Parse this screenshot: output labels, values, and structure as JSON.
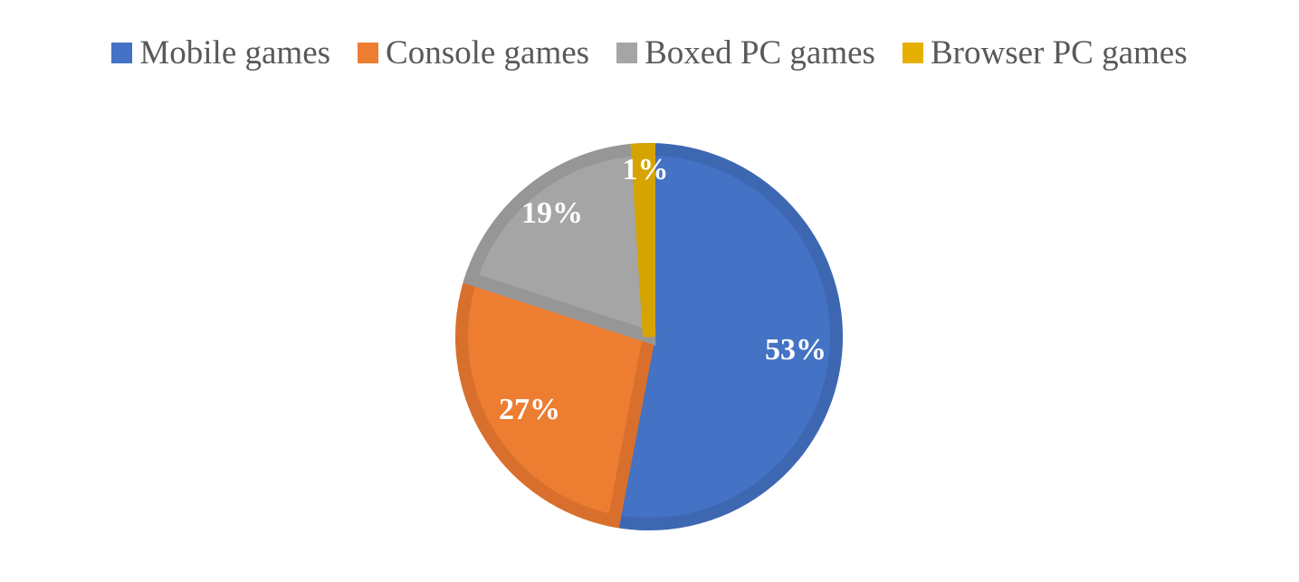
{
  "chart_data": {
    "type": "pie",
    "categories": [
      "Mobile games",
      "Console games",
      "Boxed PC games",
      "Browser PC games"
    ],
    "values": [
      53,
      27,
      19,
      1
    ],
    "data_labels": [
      "53%",
      "27%",
      "19%",
      "1%"
    ],
    "colors": [
      "#4472c4",
      "#ed7d31",
      "#a5a5a5",
      "#e6b000"
    ],
    "border_colors": [
      "#3e67b2",
      "#d96f2c",
      "#969696",
      "#d6a400"
    ],
    "legend_position": "top"
  }
}
